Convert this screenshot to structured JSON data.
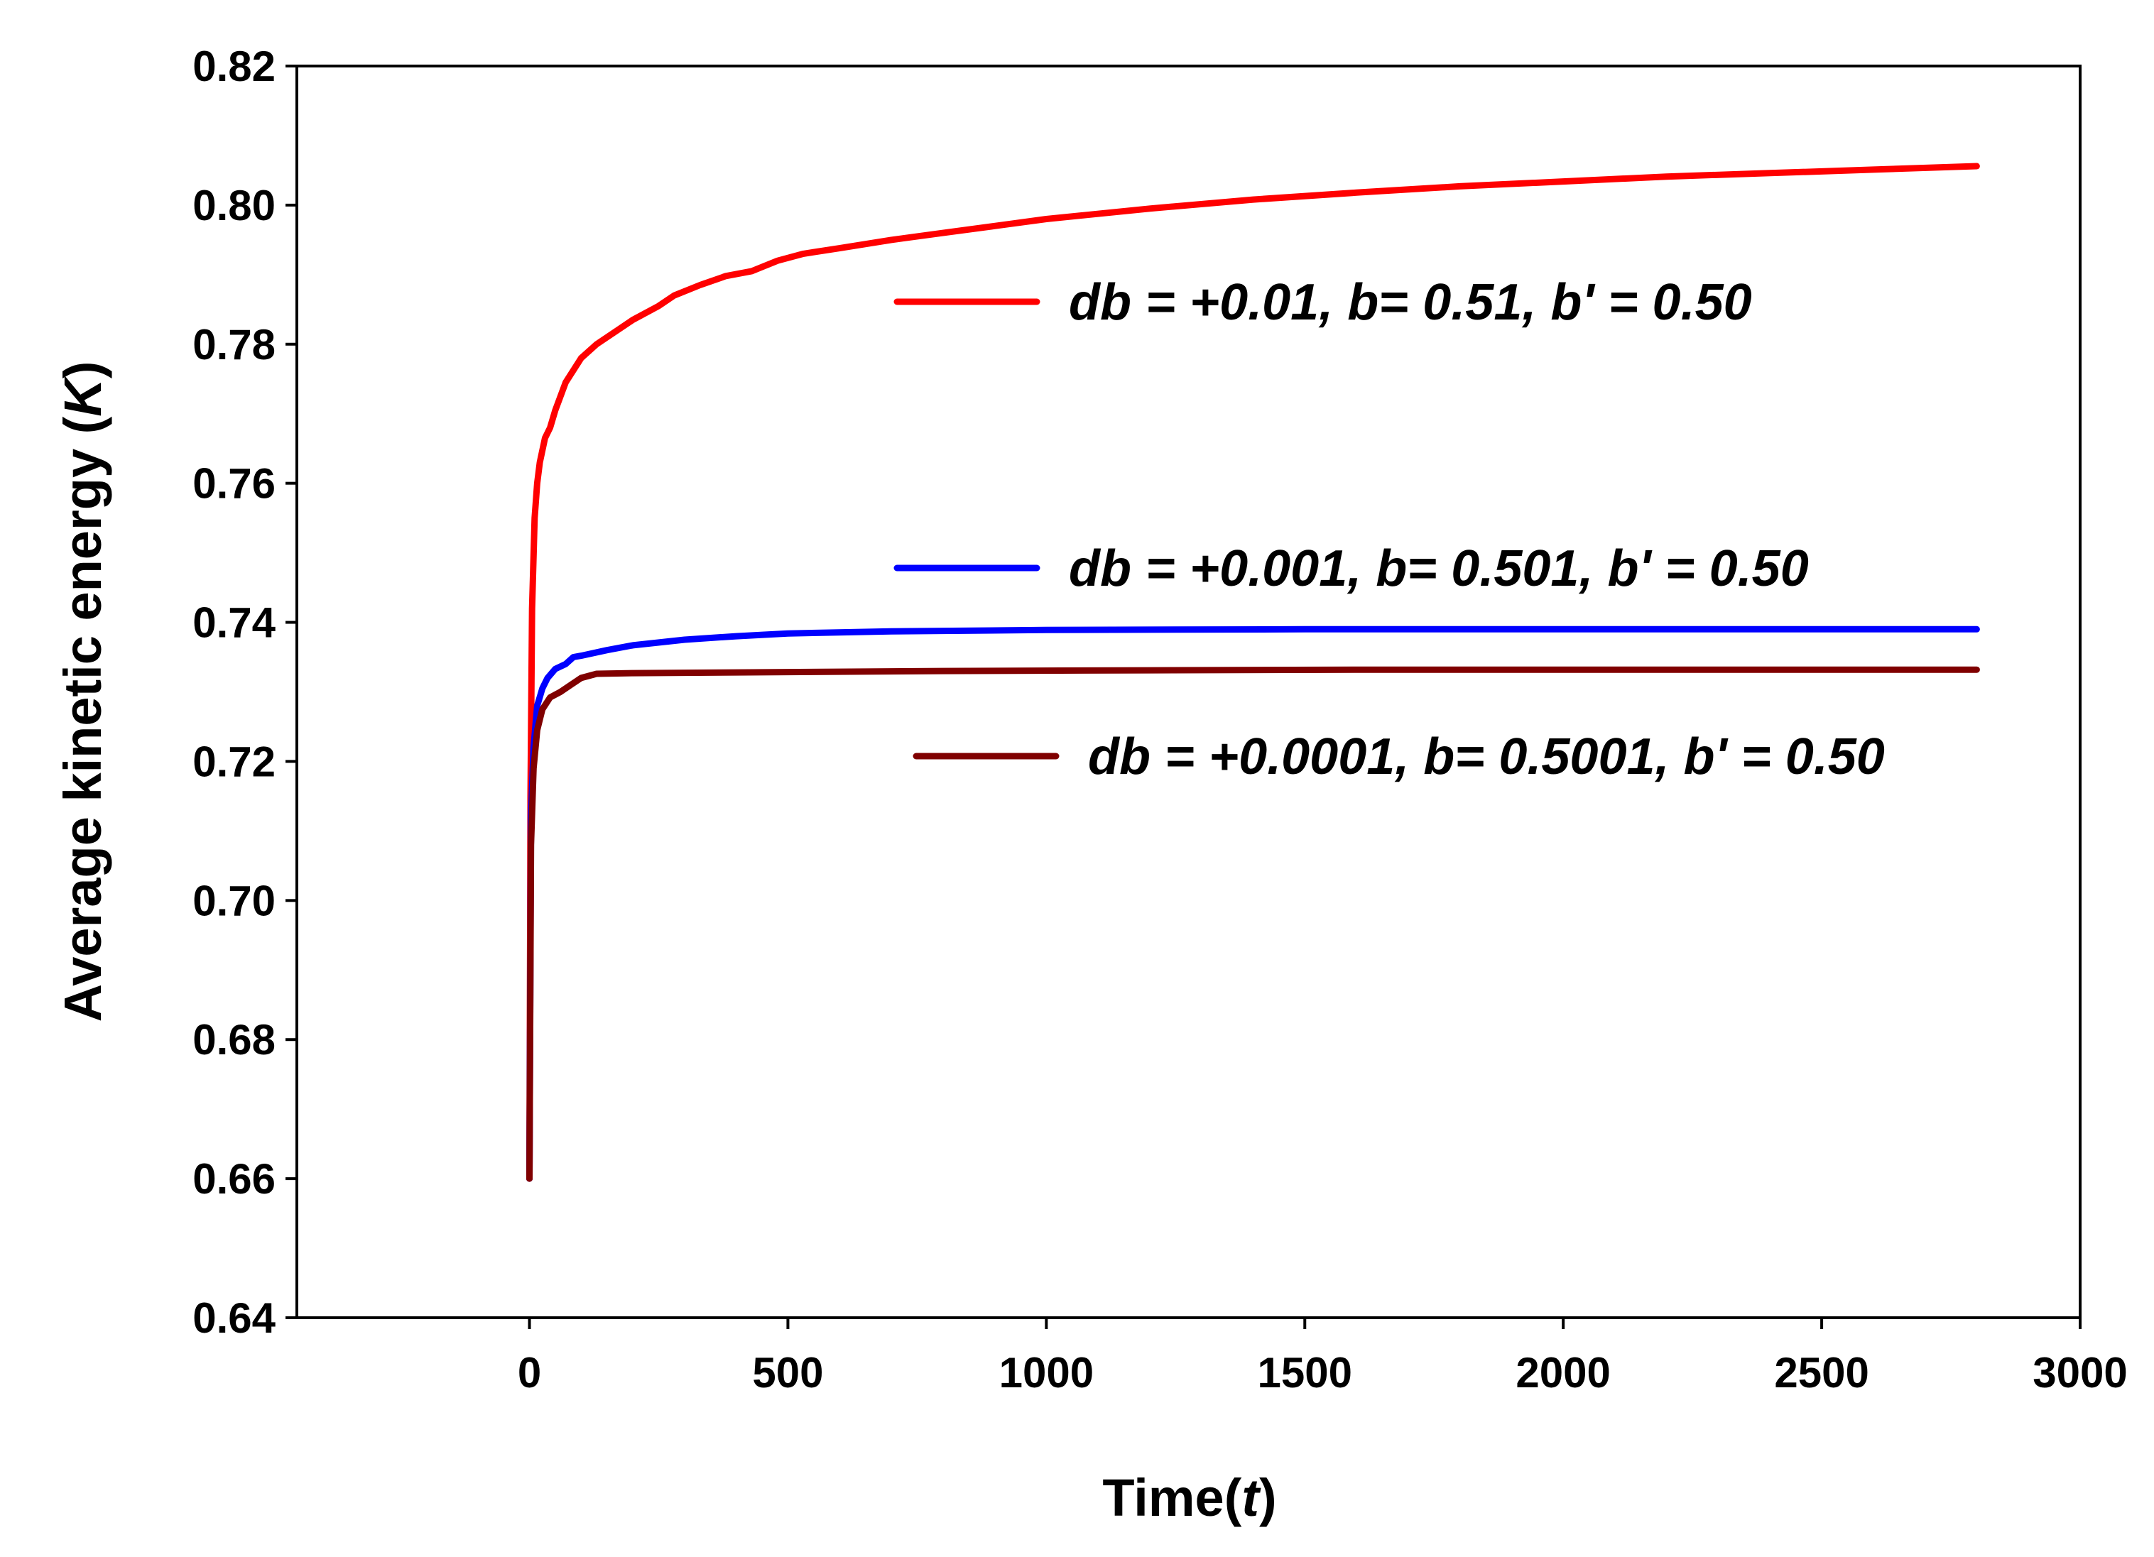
{
  "chart_data": {
    "type": "line",
    "title": "",
    "xlabel": {
      "text": "Time(",
      "var": "t",
      "close": ")"
    },
    "ylabel": {
      "text": "Average kinetic energy (",
      "var": "K",
      "close": ")"
    },
    "xlim": [
      -450,
      3000
    ],
    "ylim": [
      0.64,
      0.82
    ],
    "xticks": [
      0,
      500,
      1000,
      1500,
      2000,
      2500,
      3000
    ],
    "xtick_labels": [
      "0",
      "500",
      "1000",
      "1500",
      "2000",
      "2500",
      "3000"
    ],
    "yticks": [
      0.64,
      0.66,
      0.68,
      0.7,
      0.72,
      0.74,
      0.76,
      0.78,
      0.8,
      0.82
    ],
    "ytick_labels": [
      "0.64",
      "0.66",
      "0.68",
      "0.70",
      "0.72",
      "0.74",
      "0.76",
      "0.78",
      "0.80",
      "0.82"
    ],
    "grid": false,
    "legend_position": "inside-right",
    "series": [
      {
        "name": "db = +0.01, b= 0.51, b' = 0.50",
        "color": "#ff0000",
        "x": [
          0,
          2,
          5,
          10,
          15,
          20,
          30,
          40,
          50,
          70,
          100,
          130,
          170,
          200,
          250,
          280,
          330,
          380,
          430,
          480,
          530,
          600,
          700,
          800,
          900,
          1000,
          1200,
          1400,
          1600,
          1800,
          2000,
          2200,
          2400,
          2600,
          2800
        ],
        "y": [
          0.66,
          0.715,
          0.742,
          0.755,
          0.76,
          0.763,
          0.7665,
          0.768,
          0.7705,
          0.7745,
          0.778,
          0.78,
          0.782,
          0.7835,
          0.7855,
          0.787,
          0.7885,
          0.7898,
          0.7905,
          0.792,
          0.793,
          0.7938,
          0.795,
          0.796,
          0.797,
          0.798,
          0.7995,
          0.8008,
          0.8018,
          0.8027,
          0.8034,
          0.8041,
          0.8046,
          0.8051,
          0.8056
        ]
      },
      {
        "name": "db = +0.001, b= 0.501, b' = 0.50",
        "color": "#0000ff",
        "x": [
          0,
          3,
          8,
          15,
          25,
          35,
          50,
          70,
          85,
          100,
          150,
          200,
          300,
          400,
          500,
          700,
          1000,
          1500,
          2000,
          2500,
          2800
        ],
        "y": [
          0.66,
          0.712,
          0.722,
          0.728,
          0.7305,
          0.732,
          0.7333,
          0.734,
          0.735,
          0.7352,
          0.736,
          0.7367,
          0.7375,
          0.738,
          0.7384,
          0.7387,
          0.7389,
          0.739,
          0.739,
          0.739,
          0.739
        ]
      },
      {
        "name": "db = +0.0001, b= 0.5001, b' = 0.50",
        "color": "#800000",
        "x": [
          0,
          3,
          8,
          15,
          25,
          40,
          60,
          80,
          100,
          130,
          200,
          400,
          800,
          1200,
          1600,
          2000,
          2400,
          2800
        ],
        "y": [
          0.66,
          0.708,
          0.719,
          0.7245,
          0.7275,
          0.7292,
          0.73,
          0.731,
          0.732,
          0.7326,
          0.7327,
          0.7328,
          0.733,
          0.7331,
          0.7332,
          0.7332,
          0.7332,
          0.7332
        ]
      }
    ]
  }
}
